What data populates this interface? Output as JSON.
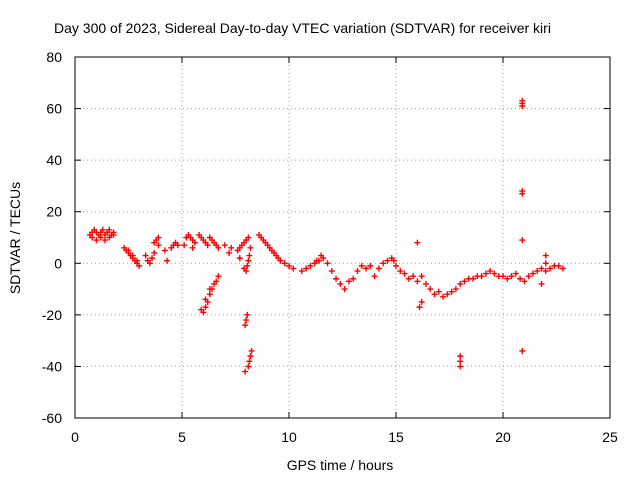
{
  "chart_data": {
    "type": "scatter",
    "title": "Day 300 of 2023, Sidereal Day-to-day VTEC variation (SDTVAR) for receiver kiri",
    "xlabel": "GPS time / hours",
    "ylabel": "SDTVAR / TECUs",
    "xlim": [
      0,
      25
    ],
    "ylim": [
      -60,
      80
    ],
    "xticks": [
      0,
      5,
      10,
      15,
      20,
      25
    ],
    "yticks": [
      -60,
      -40,
      -20,
      0,
      20,
      40,
      60,
      80
    ],
    "grid": true,
    "marker": "+",
    "colors": {
      "series": "#ff0000",
      "grid": "#a0a0a0",
      "axis": "#000000"
    },
    "series": [
      {
        "name": "SDTVAR",
        "x": [
          0.7,
          0.8,
          0.9,
          1.0,
          1.1,
          1.2,
          1.3,
          1.4,
          1.5,
          1.6,
          1.7,
          1.8,
          0.8,
          1.0,
          1.2,
          1.4,
          1.6,
          1.8,
          2.3,
          2.4,
          2.5,
          2.6,
          2.7,
          2.8,
          2.9,
          3.0,
          2.5,
          2.7,
          2.9,
          3.3,
          3.4,
          3.6,
          3.7,
          3.8,
          3.9,
          3.5,
          3.7,
          3.9,
          4.3,
          4.5,
          4.6,
          4.7,
          4.8,
          4.2,
          5.1,
          5.2,
          5.3,
          5.4,
          5.5,
          5.6,
          5.5,
          5.8,
          5.9,
          6.0,
          6.1,
          6.2,
          6.3,
          6.4,
          6.5,
          6.6,
          6.7,
          5.9,
          6.1,
          6.3,
          6.0,
          6.1,
          6.2,
          6.3,
          6.4,
          6.5,
          6.6,
          6.7,
          7.2,
          7.0,
          7.3,
          7.6,
          7.7,
          7.8,
          7.9,
          8.0,
          8.1,
          7.7,
          7.9,
          7.95,
          8.0,
          8.05,
          8.1,
          8.15,
          8.2,
          8.25,
          7.95,
          8.0,
          8.05,
          8.1,
          8.15,
          8.2,
          8.6,
          8.7,
          8.8,
          8.9,
          9.0,
          9.1,
          9.2,
          9.3,
          9.4,
          9.5,
          9.6,
          9.8,
          10.0,
          10.2,
          10.6,
          10.8,
          11.0,
          11.2,
          11.4,
          11.6,
          11.8,
          12.0,
          12.2,
          12.4,
          12.6,
          12.8,
          11.3,
          11.5,
          13.0,
          13.2,
          13.4,
          13.6,
          13.8,
          14.0,
          14.2,
          14.4,
          14.6,
          14.8,
          14.9,
          15.0,
          15.2,
          15.4,
          15.6,
          15.8,
          16.0,
          16.2,
          16.4,
          16.6,
          16.8,
          17.0,
          17.2,
          17.4,
          16.0,
          16.1,
          16.2,
          17.6,
          17.8,
          18.0,
          18.2,
          18.4,
          18.6,
          18.8,
          19.0,
          19.2,
          19.4,
          19.6,
          19.8,
          18.0,
          18.0,
          18.0,
          20.0,
          20.2,
          20.4,
          20.6,
          20.8,
          21.0,
          21.2,
          21.4,
          21.6,
          21.8,
          22.0,
          22.2,
          22.4,
          22.6,
          22.8,
          20.9,
          20.9,
          20.9,
          20.9,
          20.9,
          20.9,
          20.9,
          22.0,
          22.0,
          21.8
        ],
        "y": [
          11,
          12,
          13,
          12,
          11,
          12,
          13,
          11,
          12,
          13,
          11,
          12,
          10,
          9,
          10,
          9,
          10,
          11,
          6,
          5,
          4,
          3,
          2,
          1,
          0,
          -1,
          5,
          3,
          1,
          3,
          1,
          2,
          8,
          9,
          10,
          0,
          4,
          7,
          1,
          6,
          7,
          8,
          7,
          5,
          7,
          10,
          11,
          10,
          9,
          8,
          6,
          11,
          10,
          9,
          8,
          7,
          10,
          9,
          8,
          7,
          6,
          -18,
          -14,
          -10,
          -19,
          -17,
          -15,
          -12,
          -10,
          -8,
          -7,
          -5,
          4,
          7,
          6,
          5,
          6,
          7,
          8,
          9,
          10,
          2,
          -2,
          -24,
          -22,
          -20,
          -40,
          -38,
          -36,
          -34,
          -42,
          -3,
          -1,
          1,
          3,
          6,
          11,
          10,
          9,
          8,
          7,
          6,
          5,
          4,
          3,
          2,
          1,
          0,
          -1,
          -2,
          -3,
          -2,
          -1,
          0,
          1,
          2,
          0,
          -3,
          -6,
          -8,
          -10,
          -7,
          1,
          3,
          -6,
          -3,
          -1,
          -2,
          -1,
          -5,
          -2,
          0,
          1,
          2,
          1,
          -1,
          -3,
          -4,
          -6,
          -5,
          -7,
          -5,
          -8,
          -10,
          -12,
          -11,
          -13,
          -12,
          8,
          -17,
          -15,
          -11,
          -10,
          -8,
          -7,
          -6,
          -6,
          -5,
          -5,
          -4,
          -3,
          -4,
          -5,
          -38,
          -40,
          -36,
          -5,
          -6,
          -5,
          -4,
          -6,
          -7,
          -5,
          -4,
          -3,
          -2,
          -3,
          -2,
          -1,
          -1,
          -2,
          63,
          62,
          61,
          28,
          27,
          9,
          -34,
          3,
          0,
          -8
        ]
      }
    ]
  }
}
